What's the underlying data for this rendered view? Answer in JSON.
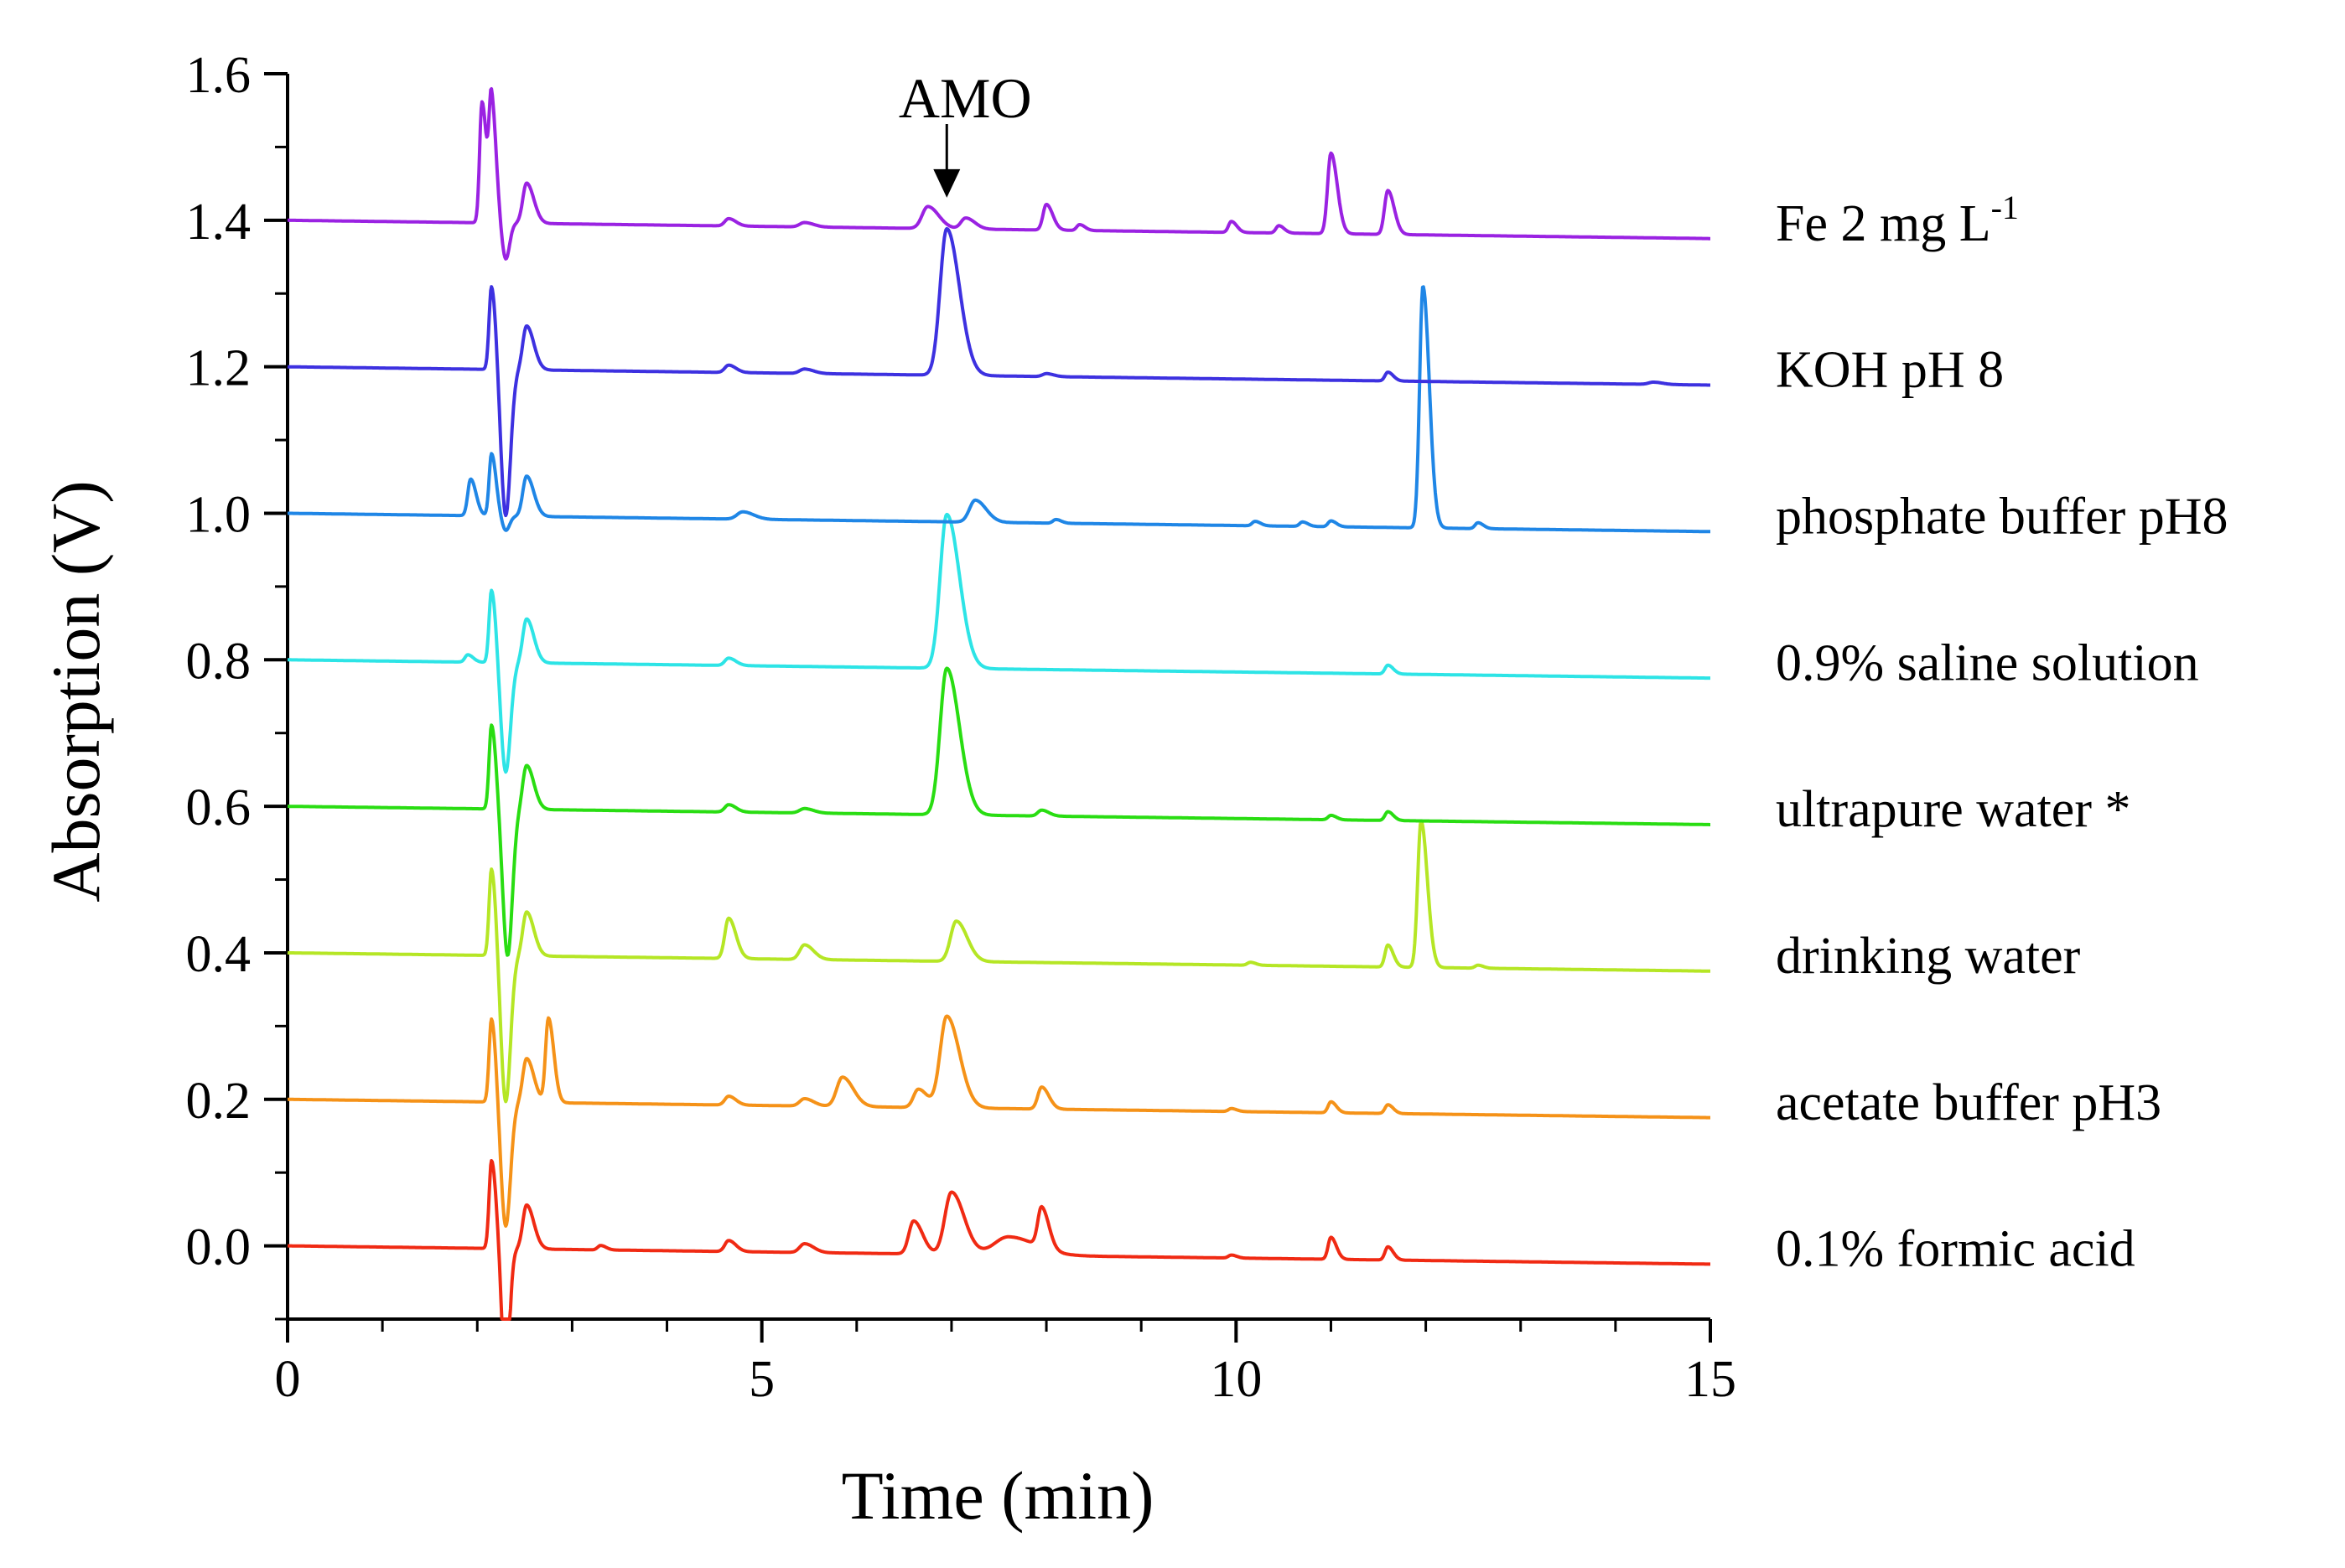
{
  "chart_data": {
    "type": "line",
    "xlabel": "Time (min)",
    "ylabel": "Absorption (V)",
    "xlim": [
      0,
      15
    ],
    "ylim": [
      -0.1,
      1.6
    ],
    "xticks": [
      0,
      5,
      10,
      15
    ],
    "xtick_labels": [
      "0",
      "5",
      "10",
      "15"
    ],
    "yticks": [
      0.0,
      0.2,
      0.4,
      0.6,
      0.8,
      1.0,
      1.2,
      1.4,
      1.6
    ],
    "ytick_labels": [
      "0.0",
      "0.2",
      "0.4",
      "0.6",
      "0.8",
      "1.0",
      "1.2",
      "1.4",
      "1.6"
    ],
    "grid": false,
    "annotation": {
      "text": "AMO",
      "x": 6.95,
      "y_top": 1.5,
      "y_tip": 1.44
    },
    "series": [
      {
        "name": "0.1% formic acid",
        "label_main": "0.1% formic acid",
        "label_sup": "",
        "color": "#f02a13",
        "baseline": 0.0,
        "end_drift": -0.025,
        "neg_dip": {
          "x": 2.3,
          "depth": 0.18,
          "width": 0.04
        },
        "peaks": [
          [
            2.15,
            0.12,
            0.025
          ],
          [
            2.52,
            0.06,
            0.04
          ],
          [
            3.3,
            0.006,
            0.03
          ],
          [
            4.65,
            0.015,
            0.04
          ],
          [
            5.45,
            0.012,
            0.05
          ],
          [
            6.6,
            0.045,
            0.05
          ],
          [
            7.0,
            0.085,
            0.07
          ],
          [
            7.6,
            0.025,
            0.15
          ],
          [
            7.95,
            0.055,
            0.04
          ],
          [
            9.95,
            0.004,
            0.03
          ],
          [
            11.0,
            0.03,
            0.03
          ],
          [
            11.6,
            0.018,
            0.03
          ]
        ]
      },
      {
        "name": "acetate buffer pH3",
        "label_main": "acetate buffer pH3",
        "label_sup": "",
        "color": "#f59218",
        "baseline": 0.2,
        "end_drift": -0.025,
        "neg_dip": {
          "x": 2.3,
          "depth": 0.17,
          "width": 0.05
        },
        "peaks": [
          [
            2.15,
            0.115,
            0.025
          ],
          [
            2.52,
            0.06,
            0.04
          ],
          [
            2.75,
            0.115,
            0.03
          ],
          [
            4.65,
            0.012,
            0.04
          ],
          [
            5.45,
            0.01,
            0.05
          ],
          [
            5.85,
            0.04,
            0.06
          ],
          [
            6.65,
            0.025,
            0.05
          ],
          [
            6.95,
            0.125,
            0.07
          ],
          [
            7.95,
            0.03,
            0.04
          ],
          [
            9.95,
            0.004,
            0.03
          ],
          [
            11.0,
            0.015,
            0.03
          ],
          [
            11.6,
            0.012,
            0.03
          ]
        ]
      },
      {
        "name": "drinking water",
        "label_main": "drinking water",
        "label_sup": "",
        "color": "#b5e625",
        "baseline": 0.4,
        "end_drift": -0.025,
        "neg_dip": {
          "x": 2.3,
          "depth": 0.2,
          "width": 0.05
        },
        "peaks": [
          [
            2.15,
            0.12,
            0.025
          ],
          [
            2.52,
            0.06,
            0.04
          ],
          [
            4.65,
            0.055,
            0.04
          ],
          [
            5.45,
            0.02,
            0.05
          ],
          [
            7.05,
            0.055,
            0.06
          ],
          [
            10.15,
            0.004,
            0.03
          ],
          [
            11.6,
            0.03,
            0.03
          ],
          [
            11.95,
            0.2,
            0.035
          ],
          [
            12.55,
            0.004,
            0.03
          ]
        ]
      },
      {
        "name": "ultrapure water *",
        "label_main": "ultrapure water *",
        "label_sup": "",
        "color": "#29dd12",
        "baseline": 0.6,
        "end_drift": -0.025,
        "neg_dip": {
          "x": 2.32,
          "depth": 0.2,
          "width": 0.05
        },
        "peaks": [
          [
            2.15,
            0.115,
            0.025
          ],
          [
            2.52,
            0.06,
            0.04
          ],
          [
            4.65,
            0.01,
            0.04
          ],
          [
            5.45,
            0.006,
            0.05
          ],
          [
            6.95,
            0.2,
            0.07
          ],
          [
            7.95,
            0.008,
            0.04
          ],
          [
            11.0,
            0.006,
            0.03
          ],
          [
            11.6,
            0.012,
            0.03
          ]
        ]
      },
      {
        "name": "0.9% saline solution",
        "label_main": "0.9% saline solution",
        "label_sup": "",
        "color": "#2de4e6",
        "baseline": 0.8,
        "end_drift": -0.025,
        "neg_dip": {
          "x": 2.3,
          "depth": 0.15,
          "width": 0.05
        },
        "peaks": [
          [
            1.9,
            0.01,
            0.03
          ],
          [
            2.15,
            0.1,
            0.025
          ],
          [
            2.52,
            0.06,
            0.04
          ],
          [
            4.65,
            0.01,
            0.04
          ],
          [
            6.95,
            0.21,
            0.07
          ],
          [
            11.6,
            0.012,
            0.03
          ]
        ]
      },
      {
        "name": "phosphate buffer pH8",
        "label_main": "phosphate buffer pH8",
        "label_sup": "",
        "color": "#1f86e6",
        "baseline": 1.0,
        "end_drift": -0.025,
        "neg_dip": {
          "x": 2.3,
          "depth": 0.02,
          "width": 0.04
        },
        "peaks": [
          [
            1.93,
            0.05,
            0.03
          ],
          [
            2.15,
            0.085,
            0.025
          ],
          [
            2.52,
            0.055,
            0.04
          ],
          [
            4.8,
            0.01,
            0.06
          ],
          [
            7.25,
            0.03,
            0.06
          ],
          [
            8.1,
            0.005,
            0.03
          ],
          [
            10.2,
            0.006,
            0.03
          ],
          [
            10.7,
            0.006,
            0.03
          ],
          [
            11.0,
            0.008,
            0.03
          ],
          [
            11.97,
            0.33,
            0.035
          ],
          [
            12.55,
            0.008,
            0.03
          ]
        ]
      },
      {
        "name": "KOH pH 8",
        "label_main": "KOH pH 8",
        "label_sup": "",
        "color": "#3d31e0",
        "baseline": 1.2,
        "end_drift": -0.025,
        "neg_dip": {
          "x": 2.3,
          "depth": 0.2,
          "width": 0.05
        },
        "peaks": [
          [
            2.15,
            0.115,
            0.025
          ],
          [
            2.52,
            0.06,
            0.04
          ],
          [
            4.65,
            0.01,
            0.04
          ],
          [
            5.45,
            0.006,
            0.05
          ],
          [
            6.95,
            0.2,
            0.07
          ],
          [
            8.0,
            0.004,
            0.04
          ],
          [
            11.6,
            0.012,
            0.03
          ],
          [
            14.4,
            0.003,
            0.05
          ]
        ]
      },
      {
        "name": "Fe 2 mg L-1",
        "label_main": "Fe 2 mg L",
        "label_sup": "-1",
        "color": "#9a22e2",
        "baseline": 1.4,
        "end_drift": -0.025,
        "neg_dip": {
          "x": 2.3,
          "depth": 0.05,
          "width": 0.04
        },
        "peaks": [
          [
            2.05,
            0.165,
            0.025
          ],
          [
            2.15,
            0.165,
            0.025
          ],
          [
            2.52,
            0.055,
            0.04
          ],
          [
            4.65,
            0.01,
            0.04
          ],
          [
            5.45,
            0.006,
            0.05
          ],
          [
            6.75,
            0.03,
            0.06
          ],
          [
            7.15,
            0.015,
            0.05
          ],
          [
            8.0,
            0.035,
            0.035
          ],
          [
            8.35,
            0.008,
            0.03
          ],
          [
            9.95,
            0.015,
            0.03
          ],
          [
            10.45,
            0.01,
            0.03
          ],
          [
            11.0,
            0.11,
            0.035
          ],
          [
            11.6,
            0.06,
            0.035
          ]
        ]
      }
    ]
  }
}
